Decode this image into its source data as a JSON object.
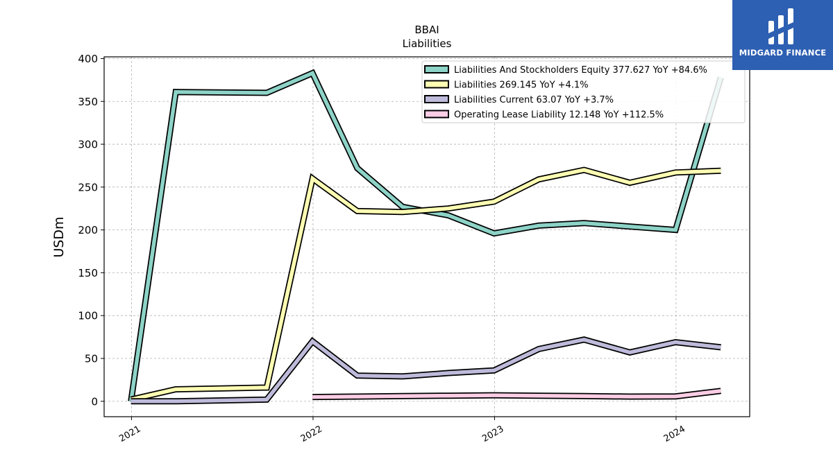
{
  "brand": {
    "name": "MIDGARD FINANCE",
    "color": "#2d5fb2"
  },
  "chart_data": {
    "type": "line",
    "title": "BBAI",
    "subtitle": "Liabilities",
    "ylabel": "USDm",
    "xlabel": "",
    "ylim": [
      -18,
      402
    ],
    "xlim": [
      "2020-11-07",
      "2024-05-28"
    ],
    "yticks": [
      0,
      50,
      100,
      150,
      200,
      250,
      300,
      350,
      400
    ],
    "xticks": [
      {
        "date": "2021-01-01",
        "label": "2021"
      },
      {
        "date": "2022-01-01",
        "label": "2022"
      },
      {
        "date": "2023-01-01",
        "label": "2023"
      },
      {
        "date": "2024-01-01",
        "label": "2024"
      }
    ],
    "grid": true,
    "legend_position": "top-right",
    "series": [
      {
        "name": "Liabilities And Stockholders Equity",
        "legend": "Liabilities And Stockholders Equity  377.627 YoY +84.6%",
        "color": "#8dd3c7",
        "x": [
          "2020-12-31",
          "2021-03-31",
          "2021-09-30",
          "2021-12-31",
          "2022-03-31",
          "2022-06-30",
          "2022-09-30",
          "2022-12-31",
          "2023-03-31",
          "2023-06-30",
          "2023-09-30",
          "2023-12-31",
          "2024-03-31"
        ],
        "y": [
          0,
          361,
          360,
          383,
          272,
          227,
          217,
          196,
          205,
          208,
          204,
          200,
          378
        ]
      },
      {
        "name": "Liabilities",
        "legend": "Liabilities  269.145 YoY +4.1%",
        "color": "#ffffb3",
        "x": [
          "2020-12-31",
          "2021-03-31",
          "2021-09-30",
          "2021-12-31",
          "2022-03-31",
          "2022-06-30",
          "2022-09-30",
          "2022-12-31",
          "2023-03-31",
          "2023-06-30",
          "2023-09-30",
          "2023-12-31",
          "2024-03-31"
        ],
        "y": [
          2,
          14,
          16,
          260,
          222,
          221,
          225,
          233,
          259,
          270,
          255,
          267,
          269
        ]
      },
      {
        "name": "Liabilities Current",
        "legend": "Liabilities Current  63.07 YoY +3.7%",
        "color": "#bebada",
        "x": [
          "2020-12-31",
          "2021-03-31",
          "2021-09-30",
          "2021-12-31",
          "2022-03-31",
          "2022-06-30",
          "2022-09-30",
          "2022-12-31",
          "2023-03-31",
          "2023-06-30",
          "2023-09-30",
          "2023-12-31",
          "2024-03-31"
        ],
        "y": [
          0,
          0,
          2,
          70,
          30,
          29,
          33,
          36,
          61,
          72,
          57,
          69,
          63
        ]
      },
      {
        "name": "Operating Lease Liability",
        "legend": "Operating Lease Liability  12.148 YoY +112.5%",
        "color": "#fccde5",
        "x": [
          "2021-12-31",
          "2022-03-31",
          "2022-06-30",
          "2022-09-30",
          "2022-12-31",
          "2023-03-31",
          "2023-06-30",
          "2023-09-30",
          "2023-12-31",
          "2024-03-31"
        ],
        "y": [
          5,
          5.5,
          6,
          6.5,
          7,
          6.5,
          6,
          5.5,
          5.7,
          12.1
        ]
      }
    ]
  }
}
